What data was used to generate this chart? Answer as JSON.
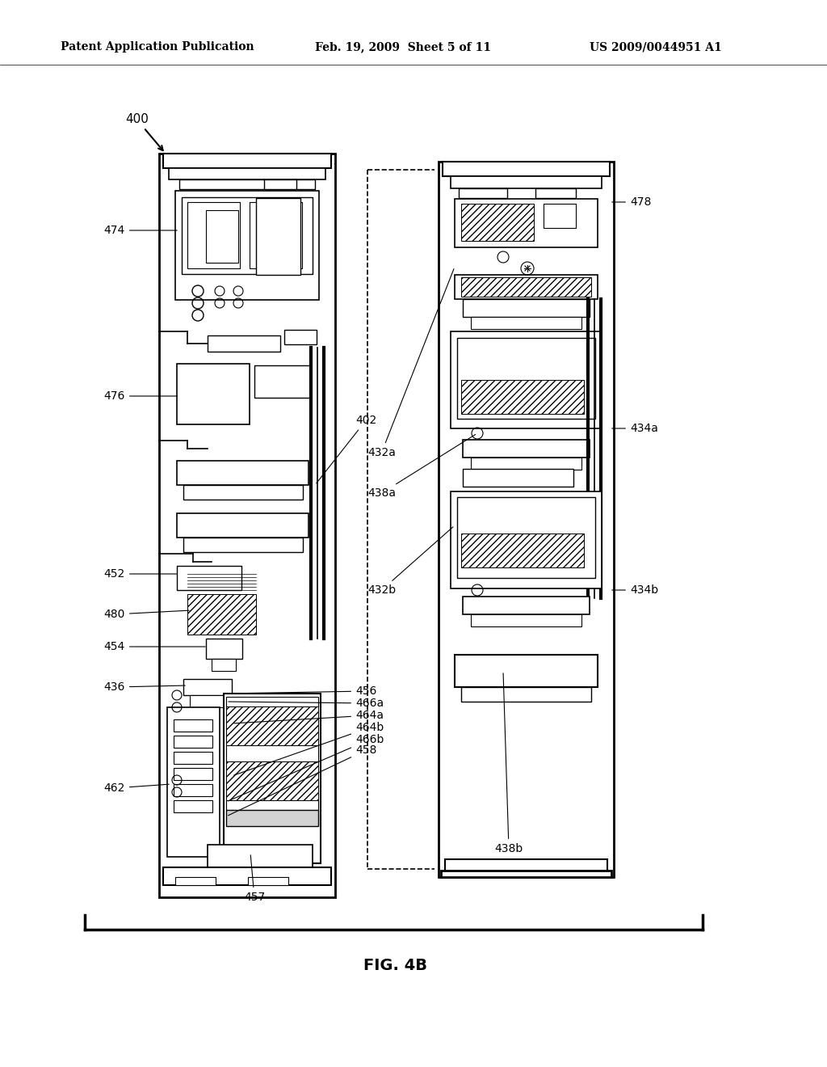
{
  "title_left": "Patent Application Publication",
  "title_mid": "Feb. 19, 2009  Sheet 5 of 11",
  "title_right": "US 2009/0044951 A1",
  "fig_label": "FIG. 4B",
  "background_color": "#ffffff",
  "text_color": "#000000"
}
